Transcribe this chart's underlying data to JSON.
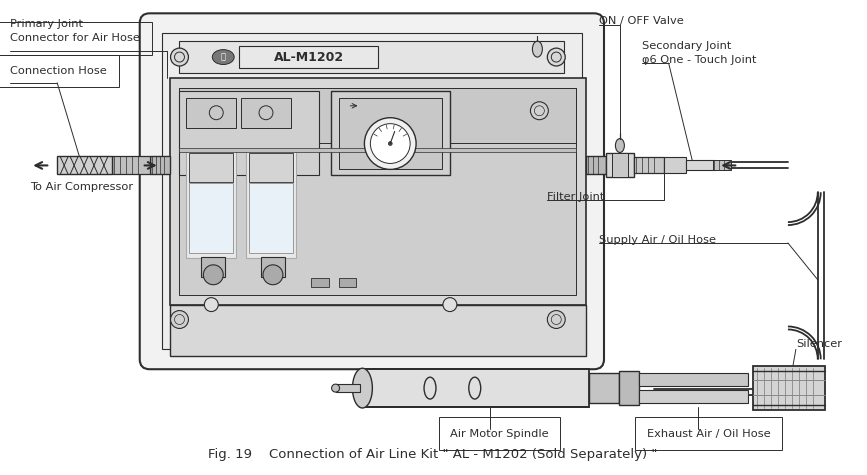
{
  "bg_color": "#ffffff",
  "lc": "#2d2d2d",
  "title": "Fig. 19    Connection of Air Line Kit \" AL - M1202 (Sold Separately) \"",
  "lbl_primary": "Primary Joint",
  "lbl_connector": "Connector for Air Hose",
  "lbl_conn_hose": "Connection Hose",
  "lbl_compressor": "To Air Compressor",
  "lbl_onoff": "ON / OFF Valve",
  "lbl_secondary": "Secondary Joint",
  "lbl_phi6": "φ6 One - Touch Joint",
  "lbl_filter": "Filter Joint",
  "lbl_supply": "Supply Air / Oil Hose",
  "lbl_silencer": "Silencer",
  "lbl_spindle": "Air Motor Spindle",
  "lbl_exhaust": "Exhaust Air / Oil Hose",
  "lbl_model": "AL-M1202"
}
